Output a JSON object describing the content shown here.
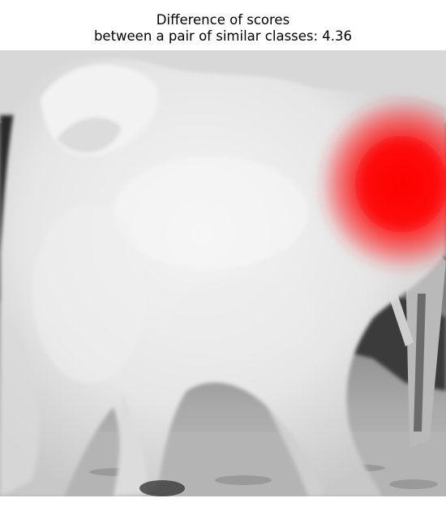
{
  "title": {
    "line1": "Difference of scores",
    "line2": "between a pair of similar classes: 4.36"
  },
  "image": {
    "subject": "white fluffy dog, grayscale photo",
    "overlay": "saliency heatmap"
  },
  "colors": {
    "background": "#ffffff",
    "heatmap": "#ff0000",
    "title_text": "#000000"
  }
}
